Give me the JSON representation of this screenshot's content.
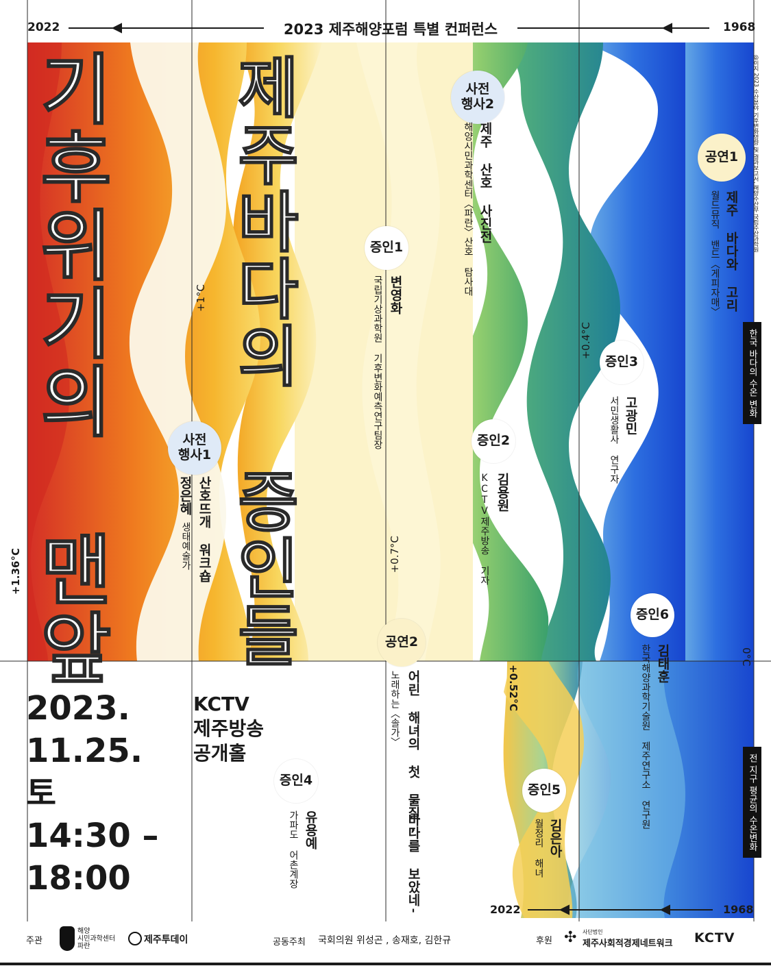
{
  "header": {
    "year_left": "2022",
    "title": "2023 제주해양포럼 특별 컨퍼런스",
    "year_right": "1968"
  },
  "titles": {
    "main": "기후위기의 맨앞",
    "sub": "제주바다의 증인들"
  },
  "temps": {
    "t136": "+1.36°C",
    "t1": "+1°C",
    "t07": "+0.7°C",
    "t04": "+0.4°C",
    "t052": "+0.52°C",
    "t0": "0°C"
  },
  "side_labels": {
    "credit": "@이지 2023 수산분야 기후변화영향 및 결과보고서, 해양수산부 국립수산과학원",
    "korea_sea": "한국 바다의 수온 변화",
    "global_sea": "전 지구 평균의 수온변화"
  },
  "events": {
    "pre1": {
      "badge": "사전\n행사1",
      "title": "산호뜨개 워크숍",
      "name": "정은혜",
      "role": "생태예술가"
    },
    "pre2": {
      "badge": "사전\n행사2",
      "title": "제주 산호 사진전",
      "desc": "해양시민과학센터〈파란〉산호 탐사대"
    },
    "w1": {
      "badge": "증인1",
      "name": "변영화",
      "role": "국립기상과학원 기후변화예측연구팀장"
    },
    "w2": {
      "badge": "증인2",
      "name": "김용원",
      "role": "KCTV제주방송 기자"
    },
    "w3": {
      "badge": "증인3",
      "name": "고광민",
      "role": "서민생활사 연구자"
    },
    "w4": {
      "badge": "증인4",
      "name": "유용예",
      "role": "가파도 어촌계장"
    },
    "w5": {
      "badge": "증인5",
      "name": "김은아",
      "role": "월정리 해녀"
    },
    "w6": {
      "badge": "증인6",
      "name": "김태훈",
      "role": "한국해양과학기술원 제주연구소 연구원"
    },
    "p1": {
      "badge": "공연1",
      "title": "제주 바다와 고리",
      "desc": "월드뮤직 밴드〈게피자매〉"
    },
    "p2": {
      "badge": "공연2",
      "title1": "어린 해녀의 첫 물질,",
      "title2": "'바다를 보았네'",
      "desc": "노래하는〈솔가〉"
    }
  },
  "info": {
    "date": "2023.",
    "date2": "11.25.",
    "day": "토",
    "time1": "14:30 –",
    "time2": "18:00",
    "venue1": "KCTV",
    "venue2": "제주방송",
    "venue3": "공개홀"
  },
  "bottom_axis": {
    "year_left": "2022",
    "year_right": "1968"
  },
  "footer": {
    "host_label": "주관",
    "host1_line1": "해양",
    "host1_line2": "시민과학센터",
    "host1_line3": "파란",
    "host2": "제주투데이",
    "cohost_label": "공동주최",
    "cohost": "국회의원 위성곤 , 송재호, 김한규",
    "sponsor_label": "후원",
    "sponsor1_small": "사단법인",
    "sponsor1": "제주사회적경제네트워크",
    "sponsor2": "KCTV"
  },
  "colors": {
    "red": "#d8372a",
    "orange": "#f08a1e",
    "yellow": "#f7d55a",
    "cream": "#fbf3c8",
    "green": "#7cc26a",
    "teal": "#2f9a8e",
    "blue": "#1e56d9",
    "lightblue": "#8fc3ea"
  }
}
